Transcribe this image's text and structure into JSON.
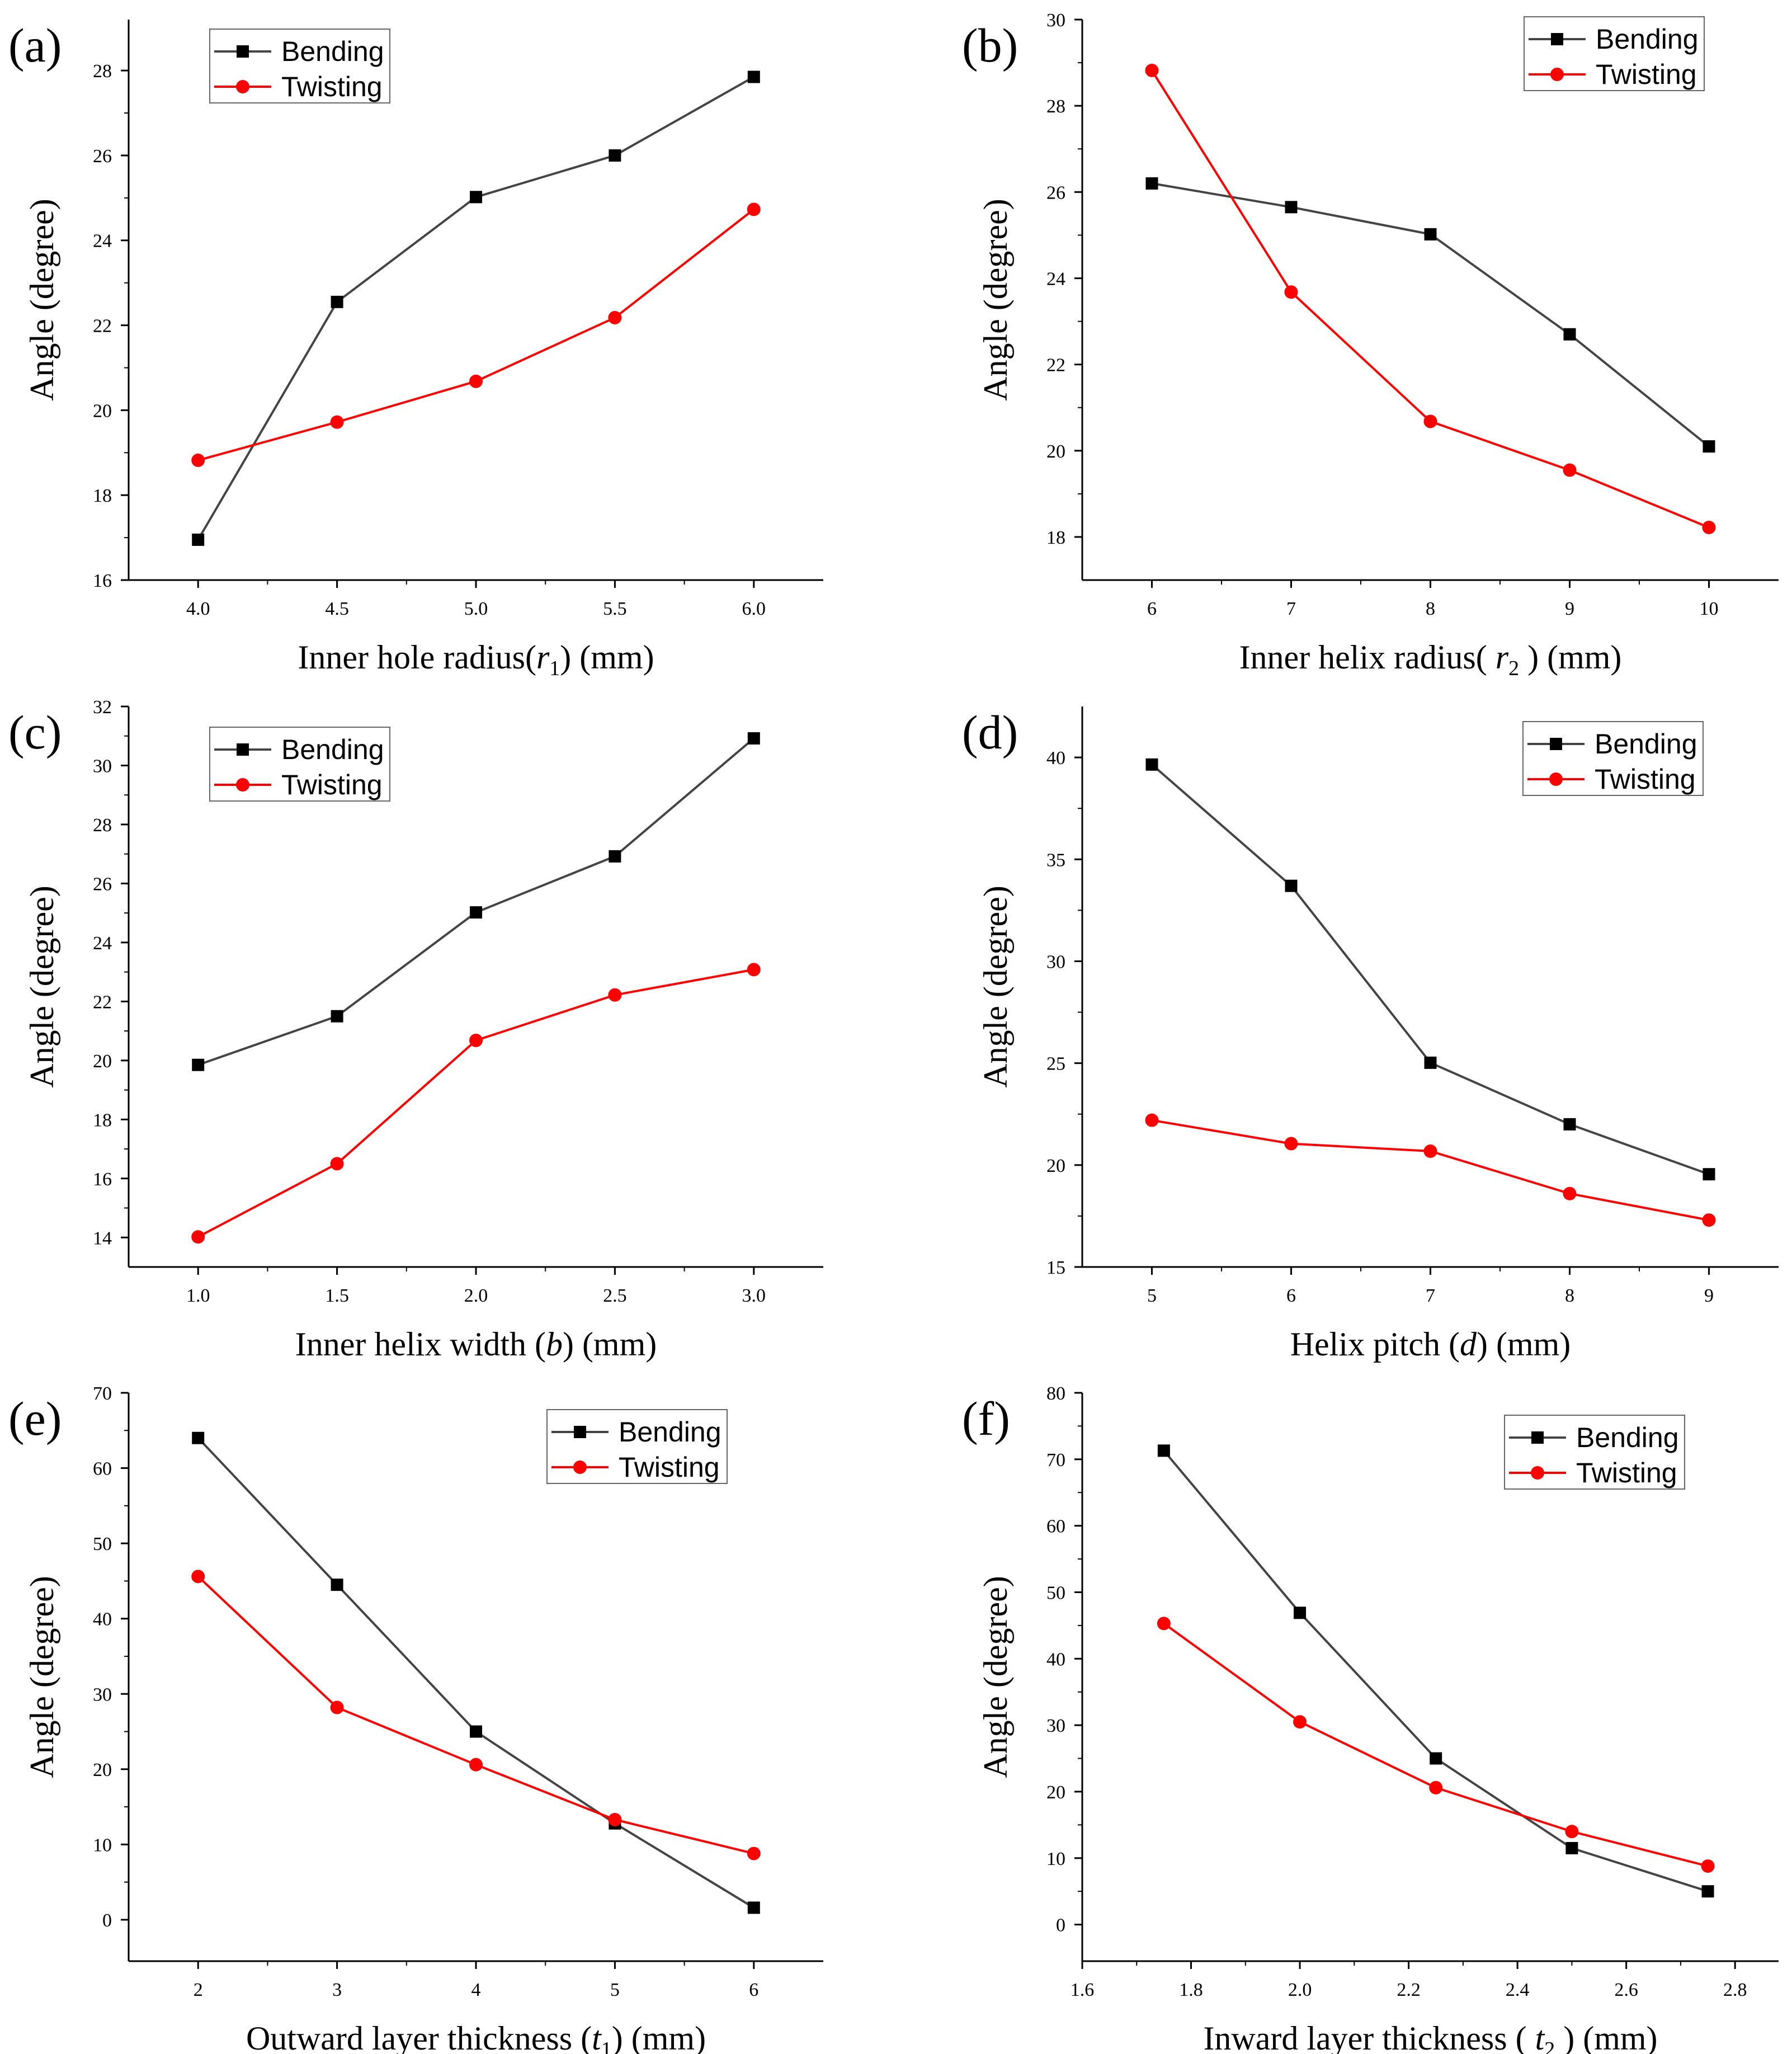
{
  "colors": {
    "bending": "#444444",
    "twisting": "#ff0000",
    "axis": "#000000",
    "legend_border": "#666666"
  },
  "legend_default": [
    "Bending",
    "Twisting"
  ],
  "chart_data": [
    {
      "panel": "(a)",
      "type": "line",
      "xlabel": "Inner hole radius(r1) (mm)",
      "xlabel_parts": {
        "before": "Inner hole radius(",
        "var": "r",
        "sub": "1",
        "after": ") (mm)"
      },
      "ylabel": "Angle  (degree)",
      "x": [
        4.0,
        4.5,
        5.0,
        5.5,
        6.0
      ],
      "xticks": [
        4.0,
        4.5,
        5.0,
        5.5,
        6.0
      ],
      "xtick_labels": [
        "4.0",
        "4.5",
        "5.0",
        "5.5",
        "6.0"
      ],
      "xlim": [
        3.75,
        6.25
      ],
      "yticks": [
        16,
        18,
        20,
        22,
        24,
        26,
        28
      ],
      "ylim": [
        16,
        29.2
      ],
      "legend": "top-left",
      "series": [
        {
          "name": "Bending",
          "marker": "square",
          "values": [
            16.95,
            22.55,
            25.02,
            26.0,
            27.85
          ]
        },
        {
          "name": "Twisting",
          "marker": "circle",
          "values": [
            18.82,
            19.72,
            20.68,
            22.18,
            24.73
          ]
        }
      ]
    },
    {
      "panel": "(b)",
      "type": "line",
      "xlabel": "Inner helix radius( r2 ) (mm)",
      "xlabel_parts": {
        "before": "Inner helix radius( ",
        "var": "r",
        "sub": "2",
        "after": " ) (mm)"
      },
      "ylabel": "Angle  (degree)",
      "x": [
        6,
        7,
        8,
        9,
        10
      ],
      "xticks": [
        6,
        7,
        8,
        9,
        10
      ],
      "xtick_labels": [
        "6",
        "7",
        "8",
        "9",
        "10"
      ],
      "xlim": [
        5.5,
        10.5
      ],
      "yticks": [
        18,
        20,
        22,
        24,
        26,
        28,
        30
      ],
      "ylim": [
        17,
        30
      ],
      "legend": "top-right",
      "series": [
        {
          "name": "Bending",
          "marker": "square",
          "values": [
            26.2,
            25.65,
            25.02,
            22.7,
            20.1
          ]
        },
        {
          "name": "Twisting",
          "marker": "circle",
          "values": [
            28.82,
            23.68,
            20.68,
            19.55,
            18.22
          ]
        }
      ]
    },
    {
      "panel": "(c)",
      "type": "line",
      "xlabel": "Inner helix width (b) (mm)",
      "xlabel_parts": {
        "before": "Inner helix width (",
        "var": "b",
        "sub": "",
        "after": ") (mm)"
      },
      "ylabel": "Angle  (degree)",
      "x": [
        1.0,
        1.5,
        2.0,
        2.5,
        3.0
      ],
      "xticks": [
        1.0,
        1.5,
        2.0,
        2.5,
        3.0
      ],
      "xtick_labels": [
        "1.0",
        "1.5",
        "2.0",
        "2.5",
        "3.0"
      ],
      "xlim": [
        0.75,
        3.25
      ],
      "yticks": [
        14,
        16,
        18,
        20,
        22,
        24,
        26,
        28,
        30,
        32
      ],
      "ylim": [
        13,
        32
      ],
      "legend": "top-left",
      "series": [
        {
          "name": "Bending",
          "marker": "square",
          "values": [
            19.85,
            21.5,
            25.02,
            26.92,
            30.92
          ]
        },
        {
          "name": "Twisting",
          "marker": "circle",
          "values": [
            14.02,
            16.5,
            20.68,
            22.22,
            23.08
          ]
        }
      ]
    },
    {
      "panel": "(d)",
      "type": "line",
      "xlabel": "Helix pitch (d) (mm)",
      "xlabel_parts": {
        "before": "Helix pitch (",
        "var": "d",
        "sub": "",
        "after": ") (mm)"
      },
      "ylabel": "Angle  (degree)",
      "x": [
        5,
        6,
        7,
        8,
        9
      ],
      "xticks": [
        5,
        6,
        7,
        8,
        9
      ],
      "xtick_labels": [
        "5",
        "6",
        "7",
        "8",
        "9"
      ],
      "xlim": [
        4.5,
        9.5
      ],
      "yticks": [
        15,
        20,
        25,
        30,
        35,
        40
      ],
      "ylim": [
        15,
        42.5
      ],
      "legend": "top-right",
      "series": [
        {
          "name": "Bending",
          "marker": "square",
          "values": [
            39.65,
            33.7,
            25.02,
            22.0,
            19.55
          ]
        },
        {
          "name": "Twisting",
          "marker": "circle",
          "values": [
            22.2,
            21.05,
            20.68,
            18.6,
            17.3
          ]
        }
      ]
    },
    {
      "panel": "(e)",
      "type": "line",
      "xlabel": "Outward layer thickness (t1) (mm)",
      "xlabel_parts": {
        "before": "Outward layer thickness (",
        "var": "t",
        "sub": "1",
        "after": ") (mm)"
      },
      "ylabel": "Angle  (degree)",
      "x": [
        2,
        3,
        4,
        5,
        6
      ],
      "xticks": [
        2,
        3,
        4,
        5,
        6
      ],
      "xtick_labels": [
        "2",
        "3",
        "4",
        "5",
        "6"
      ],
      "xlim": [
        1.5,
        6.5
      ],
      "yticks": [
        0,
        10,
        20,
        30,
        40,
        50,
        60,
        70
      ],
      "ylim": [
        -5.5,
        70
      ],
      "legend": "top-right",
      "series": [
        {
          "name": "Bending",
          "marker": "square",
          "values": [
            64.0,
            44.5,
            25.0,
            12.8,
            1.6
          ]
        },
        {
          "name": "Twisting",
          "marker": "circle",
          "values": [
            45.6,
            28.2,
            20.6,
            13.3,
            8.8
          ]
        }
      ]
    },
    {
      "panel": "(f)",
      "type": "line",
      "xlabel": "Inward layer thickness ( t2 ) (mm)",
      "xlabel_parts": {
        "before": "Inward layer thickness ( ",
        "var": "t",
        "sub": "2",
        "after": " ) (mm)"
      },
      "ylabel": "Angle  (degree)",
      "x": [
        1.75,
        2.0,
        2.25,
        2.5,
        2.75
      ],
      "xticks": [
        1.6,
        1.8,
        2.0,
        2.2,
        2.4,
        2.6,
        2.8
      ],
      "xtick_labels": [
        "1.6",
        "1.8",
        "2.0",
        "2.2",
        "2.4",
        "2.6",
        "2.8"
      ],
      "xlim": [
        1.6,
        2.88
      ],
      "yticks": [
        0,
        10,
        20,
        30,
        40,
        50,
        60,
        70,
        80
      ],
      "ylim": [
        -5.5,
        80
      ],
      "legend": "top-right",
      "series": [
        {
          "name": "Bending",
          "marker": "square",
          "values": [
            71.3,
            46.9,
            25.0,
            11.5,
            5.0
          ]
        },
        {
          "name": "Twisting",
          "marker": "circle",
          "values": [
            45.3,
            30.5,
            20.6,
            14.0,
            8.8
          ]
        }
      ]
    }
  ]
}
